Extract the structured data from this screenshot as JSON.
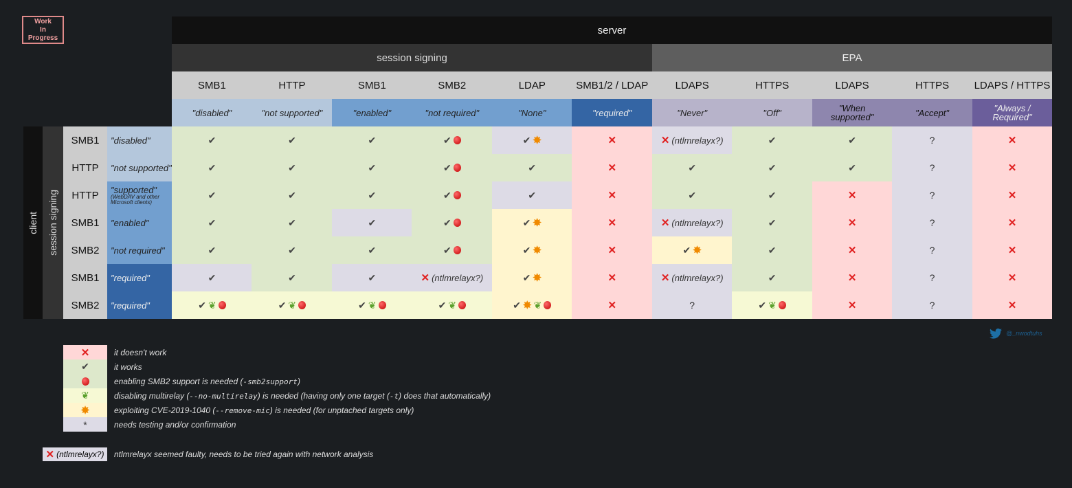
{
  "wip": [
    "Work",
    "In",
    "Progress"
  ],
  "header": {
    "server": "server",
    "session_signing": "session signing",
    "epa": "EPA"
  },
  "columns": [
    {
      "proto": "SMB1",
      "value": "\"disabled\"",
      "tone": "lb"
    },
    {
      "proto": "HTTP",
      "value": "\"not supported\"",
      "tone": "lb"
    },
    {
      "proto": "SMB1",
      "value": "\"enabled\"",
      "tone": "mb"
    },
    {
      "proto": "SMB2",
      "value": "\"not required\"",
      "tone": "mb"
    },
    {
      "proto": "LDAP",
      "value": "\"None\"",
      "tone": "mb"
    },
    {
      "proto": "SMB1/2 / LDAP",
      "value": "\"required\"",
      "tone": "db"
    },
    {
      "proto": "LDAPS",
      "value": "\"Never\"",
      "tone": "lp"
    },
    {
      "proto": "HTTPS",
      "value": "\"Off\"",
      "tone": "lp"
    },
    {
      "proto": "LDAPS",
      "value": "\"When supported\"",
      "tone": "mp"
    },
    {
      "proto": "HTTPS",
      "value": "\"Accept\"",
      "tone": "mp"
    },
    {
      "proto": "LDAPS / HTTPS",
      "value": "\"Always / Required\"",
      "tone": "dp"
    }
  ],
  "client": {
    "label": "client",
    "session_signing": "session signing"
  },
  "rows": [
    {
      "proto": "SMB1",
      "value": "\"disabled\"",
      "sub": "",
      "tone": "lb",
      "cells": [
        [
          "c",
          "g"
        ],
        [
          "c",
          "g"
        ],
        [
          "c",
          "g"
        ],
        [
          "ca",
          "g"
        ],
        [
          "cb",
          "l"
        ],
        [
          "x",
          "p"
        ],
        [
          "xn",
          "l"
        ],
        [
          "c",
          "g"
        ],
        [
          "c",
          "g"
        ],
        [
          "q",
          "l"
        ],
        [
          "x",
          "p"
        ]
      ]
    },
    {
      "proto": "HTTP",
      "value": "\"not supported\"",
      "sub": "",
      "tone": "lb",
      "cells": [
        [
          "c",
          "g"
        ],
        [
          "c",
          "g"
        ],
        [
          "c",
          "g"
        ],
        [
          "ca",
          "g"
        ],
        [
          "c",
          "g"
        ],
        [
          "x",
          "p"
        ],
        [
          "c",
          "g"
        ],
        [
          "c",
          "g"
        ],
        [
          "c",
          "g"
        ],
        [
          "q",
          "l"
        ],
        [
          "x",
          "p"
        ]
      ]
    },
    {
      "proto": "HTTP",
      "value": "\"supported\"",
      "sub": "(WebDAV and other Microsoft clients)",
      "tone": "mb",
      "cells": [
        [
          "c",
          "g"
        ],
        [
          "c",
          "g"
        ],
        [
          "c",
          "g"
        ],
        [
          "ca",
          "g"
        ],
        [
          "c",
          "l"
        ],
        [
          "x",
          "p"
        ],
        [
          "c",
          "g"
        ],
        [
          "c",
          "g"
        ],
        [
          "x",
          "p"
        ],
        [
          "q",
          "l"
        ],
        [
          "x",
          "p"
        ]
      ]
    },
    {
      "proto": "SMB1",
      "value": "\"enabled\"",
      "sub": "",
      "tone": "mb",
      "cells": [
        [
          "c",
          "g"
        ],
        [
          "c",
          "g"
        ],
        [
          "c",
          "l"
        ],
        [
          "ca",
          "g"
        ],
        [
          "cb",
          "y"
        ],
        [
          "x",
          "p"
        ],
        [
          "xn",
          "l"
        ],
        [
          "c",
          "g"
        ],
        [
          "x",
          "p"
        ],
        [
          "q",
          "l"
        ],
        [
          "x",
          "p"
        ]
      ]
    },
    {
      "proto": "SMB2",
      "value": "\"not required\"",
      "sub": "",
      "tone": "mb",
      "cells": [
        [
          "c",
          "g"
        ],
        [
          "c",
          "g"
        ],
        [
          "c",
          "g"
        ],
        [
          "ca",
          "g"
        ],
        [
          "cb",
          "y"
        ],
        [
          "x",
          "p"
        ],
        [
          "cb",
          "y"
        ],
        [
          "c",
          "g"
        ],
        [
          "x",
          "p"
        ],
        [
          "q",
          "l"
        ],
        [
          "x",
          "p"
        ]
      ]
    },
    {
      "proto": "SMB1",
      "value": "\"required\"",
      "sub": "",
      "tone": "db",
      "cells": [
        [
          "c",
          "l"
        ],
        [
          "c",
          "g"
        ],
        [
          "c",
          "l"
        ],
        [
          "xn",
          "l"
        ],
        [
          "cb",
          "y"
        ],
        [
          "x",
          "p"
        ],
        [
          "xn",
          "l"
        ],
        [
          "c",
          "g"
        ],
        [
          "x",
          "p"
        ],
        [
          "q",
          "l"
        ],
        [
          "x",
          "p"
        ]
      ]
    },
    {
      "proto": "SMB2",
      "value": "\"required\"",
      "sub": "",
      "tone": "db",
      "cells": [
        [
          "cla",
          "ly"
        ],
        [
          "cla",
          "ly"
        ],
        [
          "cla",
          "ly"
        ],
        [
          "cla",
          "ly"
        ],
        [
          "cbla",
          "y"
        ],
        [
          "x",
          "p"
        ],
        [
          "q",
          "l"
        ],
        [
          "cla",
          "ly"
        ],
        [
          "x",
          "p"
        ],
        [
          "q",
          "l"
        ],
        [
          "x",
          "p"
        ]
      ]
    }
  ],
  "symbols": {
    "check": "✔",
    "cross": "✕",
    "leaf": "❦",
    "boom": "✸",
    "question": "?",
    "ntlm": "(ntlmrelayx?)",
    "star": "*"
  },
  "twitter": "@_nwodtuhs",
  "legend": [
    {
      "sym": "x",
      "bg": "p",
      "text": "it doesn't work"
    },
    {
      "sym": "c",
      "bg": "g",
      "text": "it works"
    },
    {
      "sym": "a",
      "bg": "g",
      "pre": "enabling SMB2 support is needed (",
      "code": "-smb2support",
      "post": ")"
    },
    {
      "sym": "l",
      "bg": "ly",
      "pre": "disabling multirelay (",
      "code": "--no-multirelay",
      "post": ") is needed (having only one target (",
      "code2": "-t",
      "post2": ") does that automatically)"
    },
    {
      "sym": "b",
      "bg": "y",
      "pre": "exploiting CVE-2019-1040 (",
      "code": "--remove-mic",
      "post": ") is needed (for unptached targets only)"
    },
    {
      "sym": "s",
      "bg": "l",
      "text": "needs testing and/or confirmation"
    }
  ],
  "ntlm_note": "ntlmrelayx seemed faulty, needs to be tried again with network analysis",
  "colors": {
    "green": "#dde8cb",
    "pink": "#ffd7d7",
    "lavender": "#dddbe6",
    "yellow": "#fff5ce",
    "lightyellow": "#f6f9d4"
  }
}
